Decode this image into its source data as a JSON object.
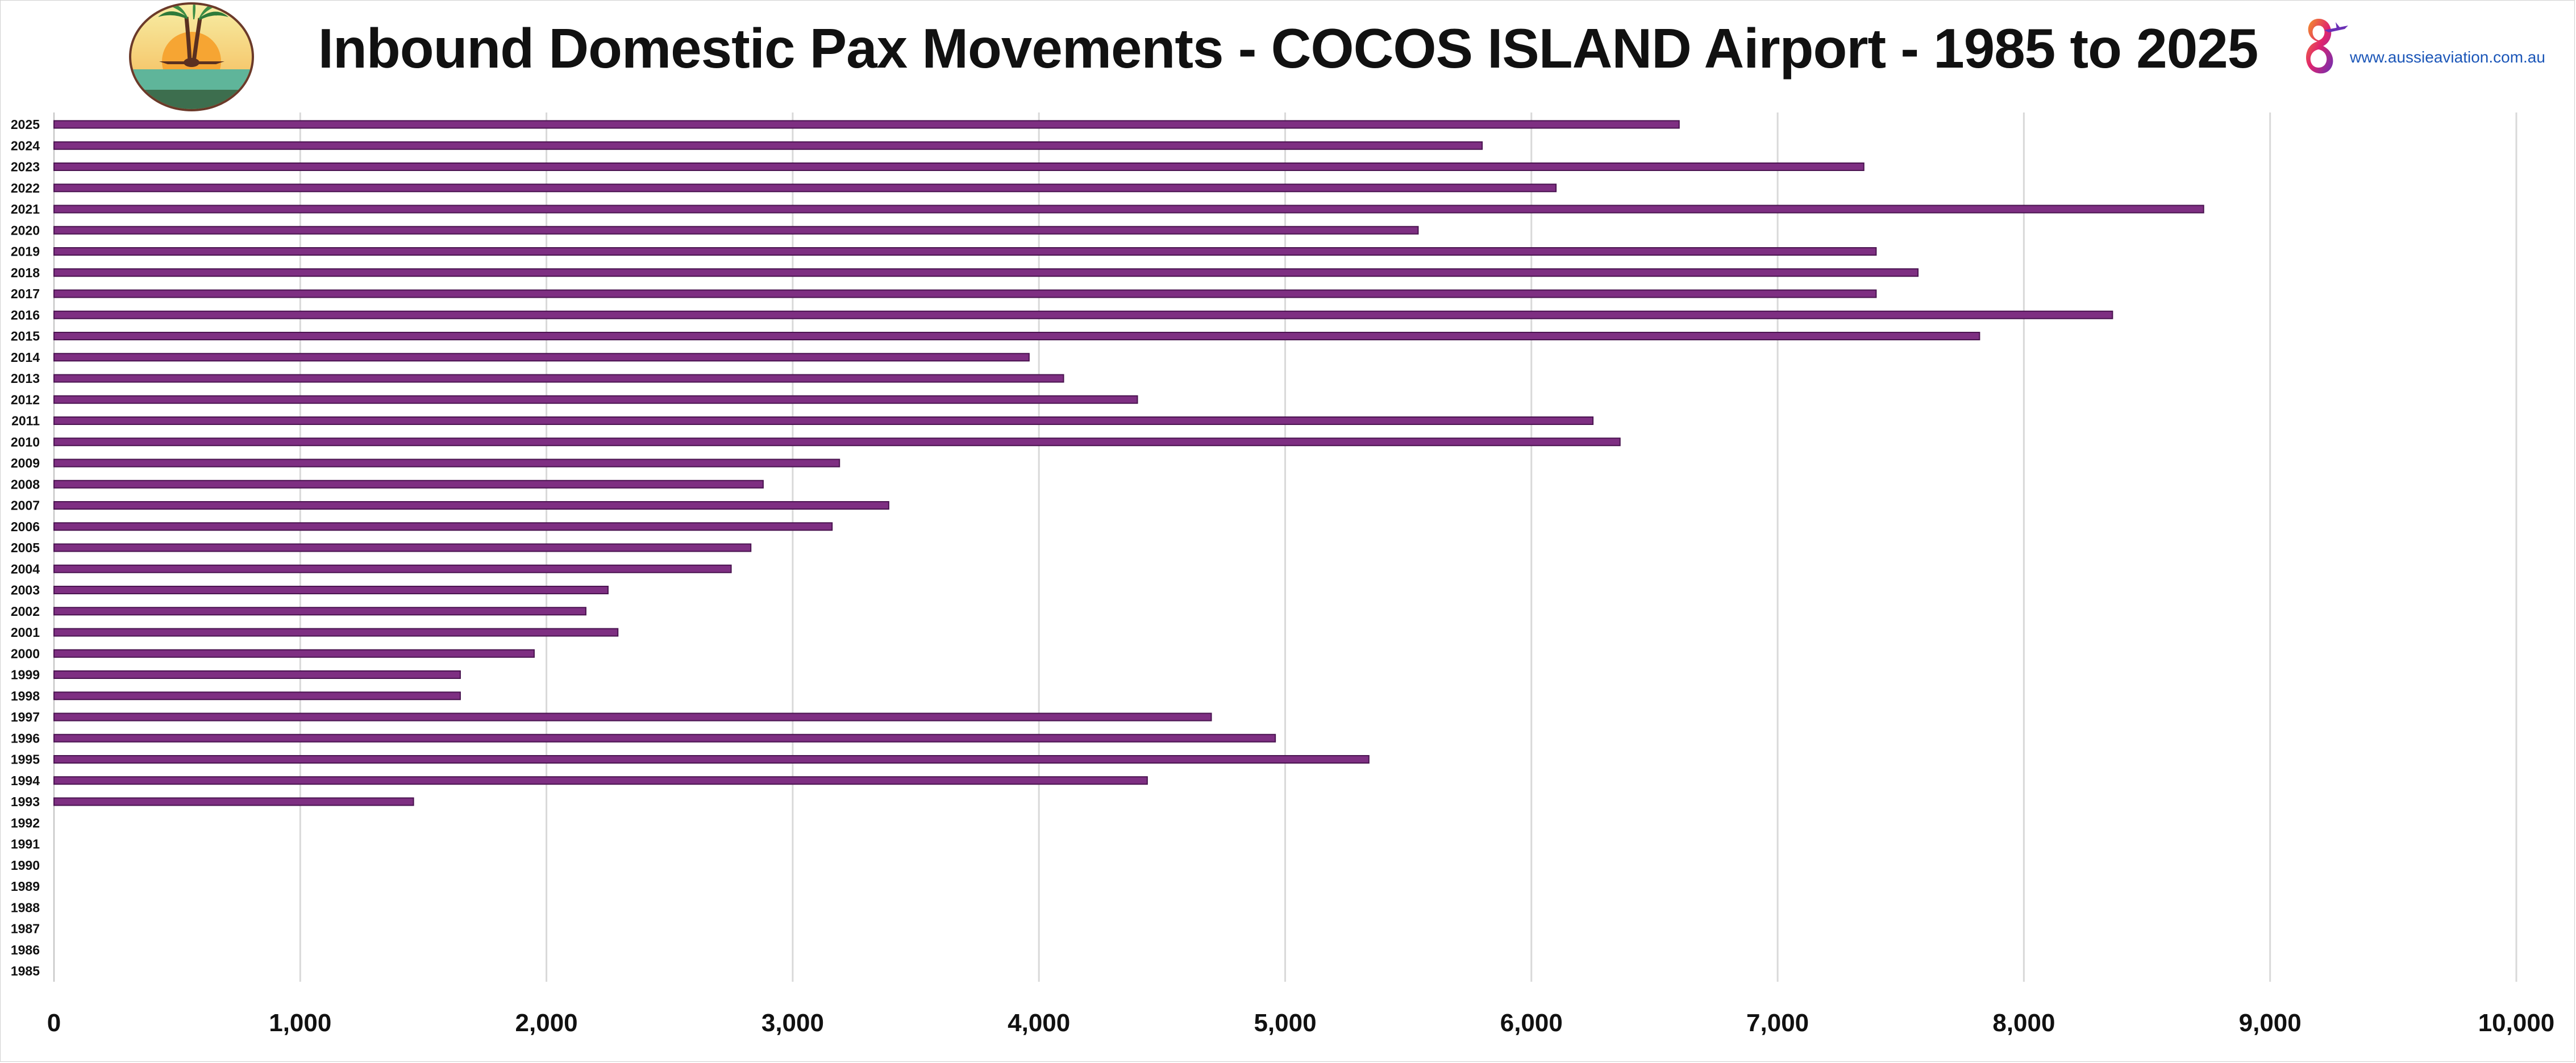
{
  "header": {
    "title": "Inbound Domestic Pax Movements - COCOS ISLAND Airport - 1985 to 2025",
    "brand_url": "www.aussieaviation.com.au"
  },
  "icons": {
    "airport_logo": "tropical-island-plane-logo-icon",
    "brand_logo": "aussie-aviation-logo-icon"
  },
  "colors": {
    "bar_fill": "#7e2f82",
    "bar_edge": "#4a1450",
    "grid": "#d9d9d9",
    "axis_text": "#111111"
  },
  "chart_data": {
    "type": "bar",
    "orientation": "horizontal",
    "title": "Inbound Domestic Pax Movements - COCOS ISLAND Airport - 1985 to 2025",
    "xlabel": "",
    "ylabel": "",
    "xlim": [
      0,
      10000
    ],
    "xticks": [
      0,
      1000,
      2000,
      3000,
      4000,
      5000,
      6000,
      7000,
      8000,
      9000,
      10000
    ],
    "xtick_labels": [
      "0",
      "1,000",
      "2,000",
      "3,000",
      "4,000",
      "5,000",
      "6,000",
      "7,000",
      "8,000",
      "9,000",
      "10,000"
    ],
    "grid": "vertical",
    "categories": [
      "2025",
      "2024",
      "2023",
      "2022",
      "2021",
      "2020",
      "2019",
      "2018",
      "2017",
      "2016",
      "2015",
      "2014",
      "2013",
      "2012",
      "2011",
      "2010",
      "2009",
      "2008",
      "2007",
      "2006",
      "2005",
      "2004",
      "2003",
      "2002",
      "2001",
      "2000",
      "1999",
      "1998",
      "1997",
      "1996",
      "1995",
      "1994",
      "1993",
      "1992",
      "1991",
      "1990",
      "1989",
      "1988",
      "1987",
      "1986",
      "1985"
    ],
    "values": [
      6600,
      5800,
      7350,
      6100,
      8730,
      5540,
      7400,
      7570,
      7400,
      8360,
      7820,
      3960,
      4100,
      4400,
      6250,
      6360,
      3190,
      2880,
      3390,
      3160,
      2830,
      2750,
      2250,
      2160,
      2290,
      1950,
      1650,
      1650,
      4700,
      4960,
      5340,
      4440,
      1460,
      0,
      0,
      0,
      0,
      0,
      0,
      0,
      0
    ]
  }
}
